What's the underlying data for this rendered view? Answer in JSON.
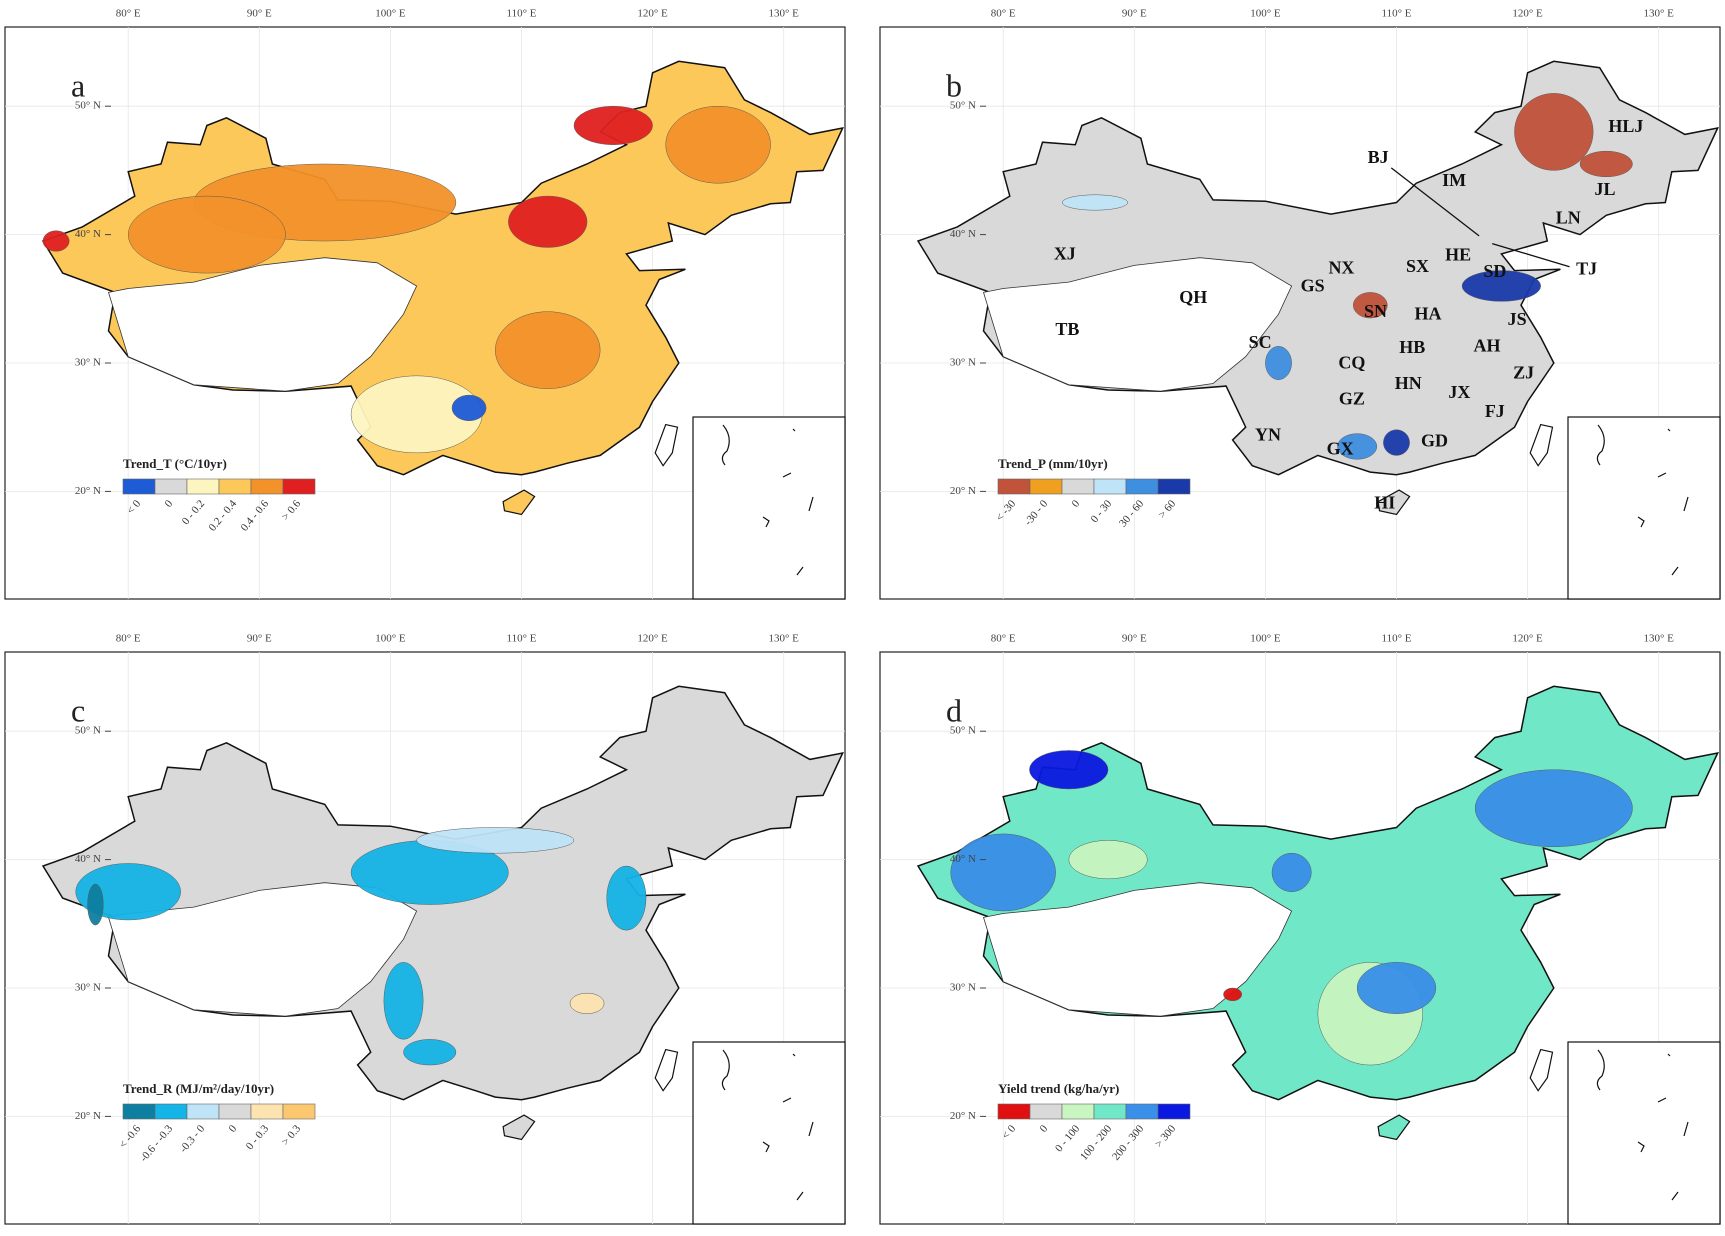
{
  "lon_ticks": [
    "80° E",
    "90° E",
    "100° E",
    "110° E",
    "120° E",
    "130° E"
  ],
  "lat_ticks": [
    "20° N",
    "30° N",
    "40° N",
    "50° N"
  ],
  "panels": [
    {
      "letter": "a",
      "legend": {
        "title": "Trend_T (°C/10yr)",
        "items": [
          {
            "label": "< 0",
            "color": "#1e5bd6"
          },
          {
            "label": "0",
            "color": "#d9d9d9"
          },
          {
            "label": "0 - 0.2",
            "color": "#fdf5c0"
          },
          {
            "label": "0.2 - 0.4",
            "color": "#fcc85a"
          },
          {
            "label": "0.4 - 0.6",
            "color": "#f3922a"
          },
          {
            "label": "> 0.6",
            "color": "#e02020"
          }
        ]
      }
    },
    {
      "letter": "b",
      "legend": {
        "title": "Trend_P (mm/10yr)",
        "items": [
          {
            "label": "< -30",
            "color": "#c0533a"
          },
          {
            "label": "-30 - 0",
            "color": "#f0a020"
          },
          {
            "label": "0",
            "color": "#d9d9d9"
          },
          {
            "label": "0 - 30",
            "color": "#bfe4f7"
          },
          {
            "label": "30 - 60",
            "color": "#3f8fe0"
          },
          {
            "label": "> 60",
            "color": "#1a3aaa"
          }
        ]
      }
    },
    {
      "letter": "c",
      "legend": {
        "title": "Trend_R (MJ/m²/day/10yr)",
        "items": [
          {
            "label": "< -0.6",
            "color": "#0e7fa0"
          },
          {
            "label": "-0.6 - -0.3",
            "color": "#14b4e6"
          },
          {
            "label": "-0.3 - 0",
            "color": "#bfe3f7"
          },
          {
            "label": "0",
            "color": "#d9d9d9"
          },
          {
            "label": "0 - 0.3",
            "color": "#fde3b0"
          },
          {
            "label": "> 0.3",
            "color": "#fbc870"
          }
        ]
      }
    },
    {
      "letter": "d",
      "legend": {
        "title": "Yield trend (kg/ha/yr)",
        "items": [
          {
            "label": "< 0",
            "color": "#e01010"
          },
          {
            "label": "0",
            "color": "#d9d9d9"
          },
          {
            "label": "0 - 100",
            "color": "#c8f5c0"
          },
          {
            "label": "100 - 200",
            "color": "#70e8c8"
          },
          {
            "label": "200 - 300",
            "color": "#3a8fe8"
          },
          {
            "label": "> 300",
            "color": "#0a18e0"
          }
        ]
      }
    }
  ],
  "province_labels": [
    "XJ",
    "TB",
    "QH",
    "GS",
    "NX",
    "SN",
    "SC",
    "CQ",
    "GZ",
    "YN",
    "GX",
    "GD",
    "HI",
    "HN",
    "JX",
    "FJ",
    "ZJ",
    "AH",
    "JS",
    "HB",
    "HA",
    "SX",
    "HE",
    "SD",
    "BJ",
    "TJ",
    "IM",
    "HLJ",
    "JL",
    "LN"
  ]
}
